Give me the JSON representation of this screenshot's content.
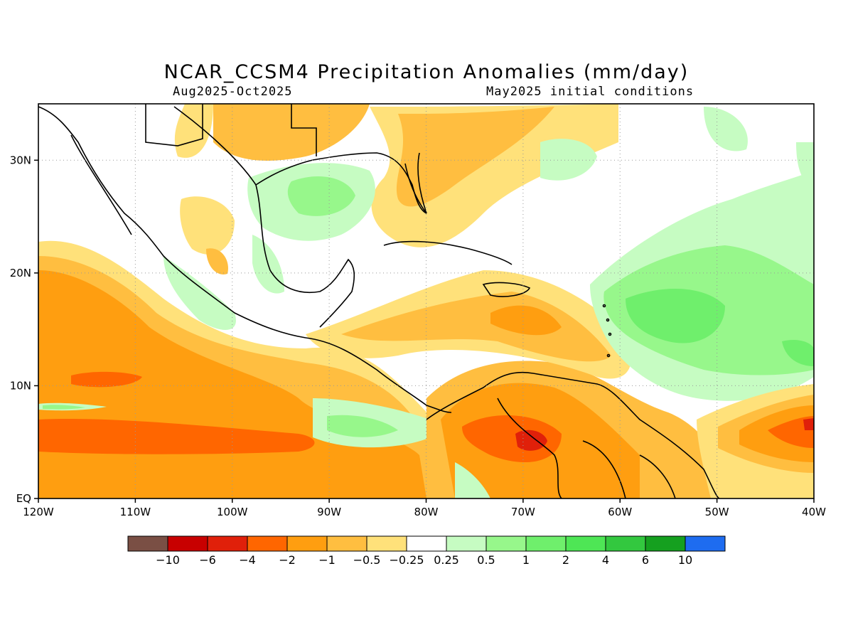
{
  "title": "NCAR_CCSM4 Precipitation Anomalies (mm/day)",
  "subtitle_left": "Aug2025-Oct2025",
  "subtitle_right": "May2025 initial conditions",
  "map": {
    "lon_ticks": [
      "120W",
      "110W",
      "100W",
      "90W",
      "80W",
      "70W",
      "60W",
      "50W",
      "40W"
    ],
    "lat_ticks": [
      "EQ",
      "10N",
      "20N",
      "30N"
    ],
    "lon_range": [
      -120,
      -40
    ],
    "lat_range": [
      0,
      35
    ],
    "gridlines": "dotted"
  },
  "colorbar": {
    "colors": [
      "#7a4f44",
      "#c80000",
      "#e0200a",
      "#ff6600",
      "#ff9e10",
      "#ffbe40",
      "#ffe17a",
      "#ffffff",
      "#c6fcc2",
      "#97f78b",
      "#6fef6c",
      "#4ee655",
      "#33c83f",
      "#15a01f",
      "#1e6cf0"
    ],
    "labels": [
      "-10",
      "-6",
      "-4",
      "-2",
      "-1",
      "-0.5",
      "-0.25",
      "0.25",
      "0.5",
      "1",
      "2",
      "4",
      "6",
      "10"
    ]
  },
  "legend_colors": {
    "dry_strong": "#ff6600",
    "dry": "#ff9e10",
    "dry_light": "#ffbe40",
    "dry_slight": "#ffe17a",
    "wet_slight": "#c6fcc2",
    "wet": "#97f78b",
    "wet_mod": "#6fef6c"
  }
}
